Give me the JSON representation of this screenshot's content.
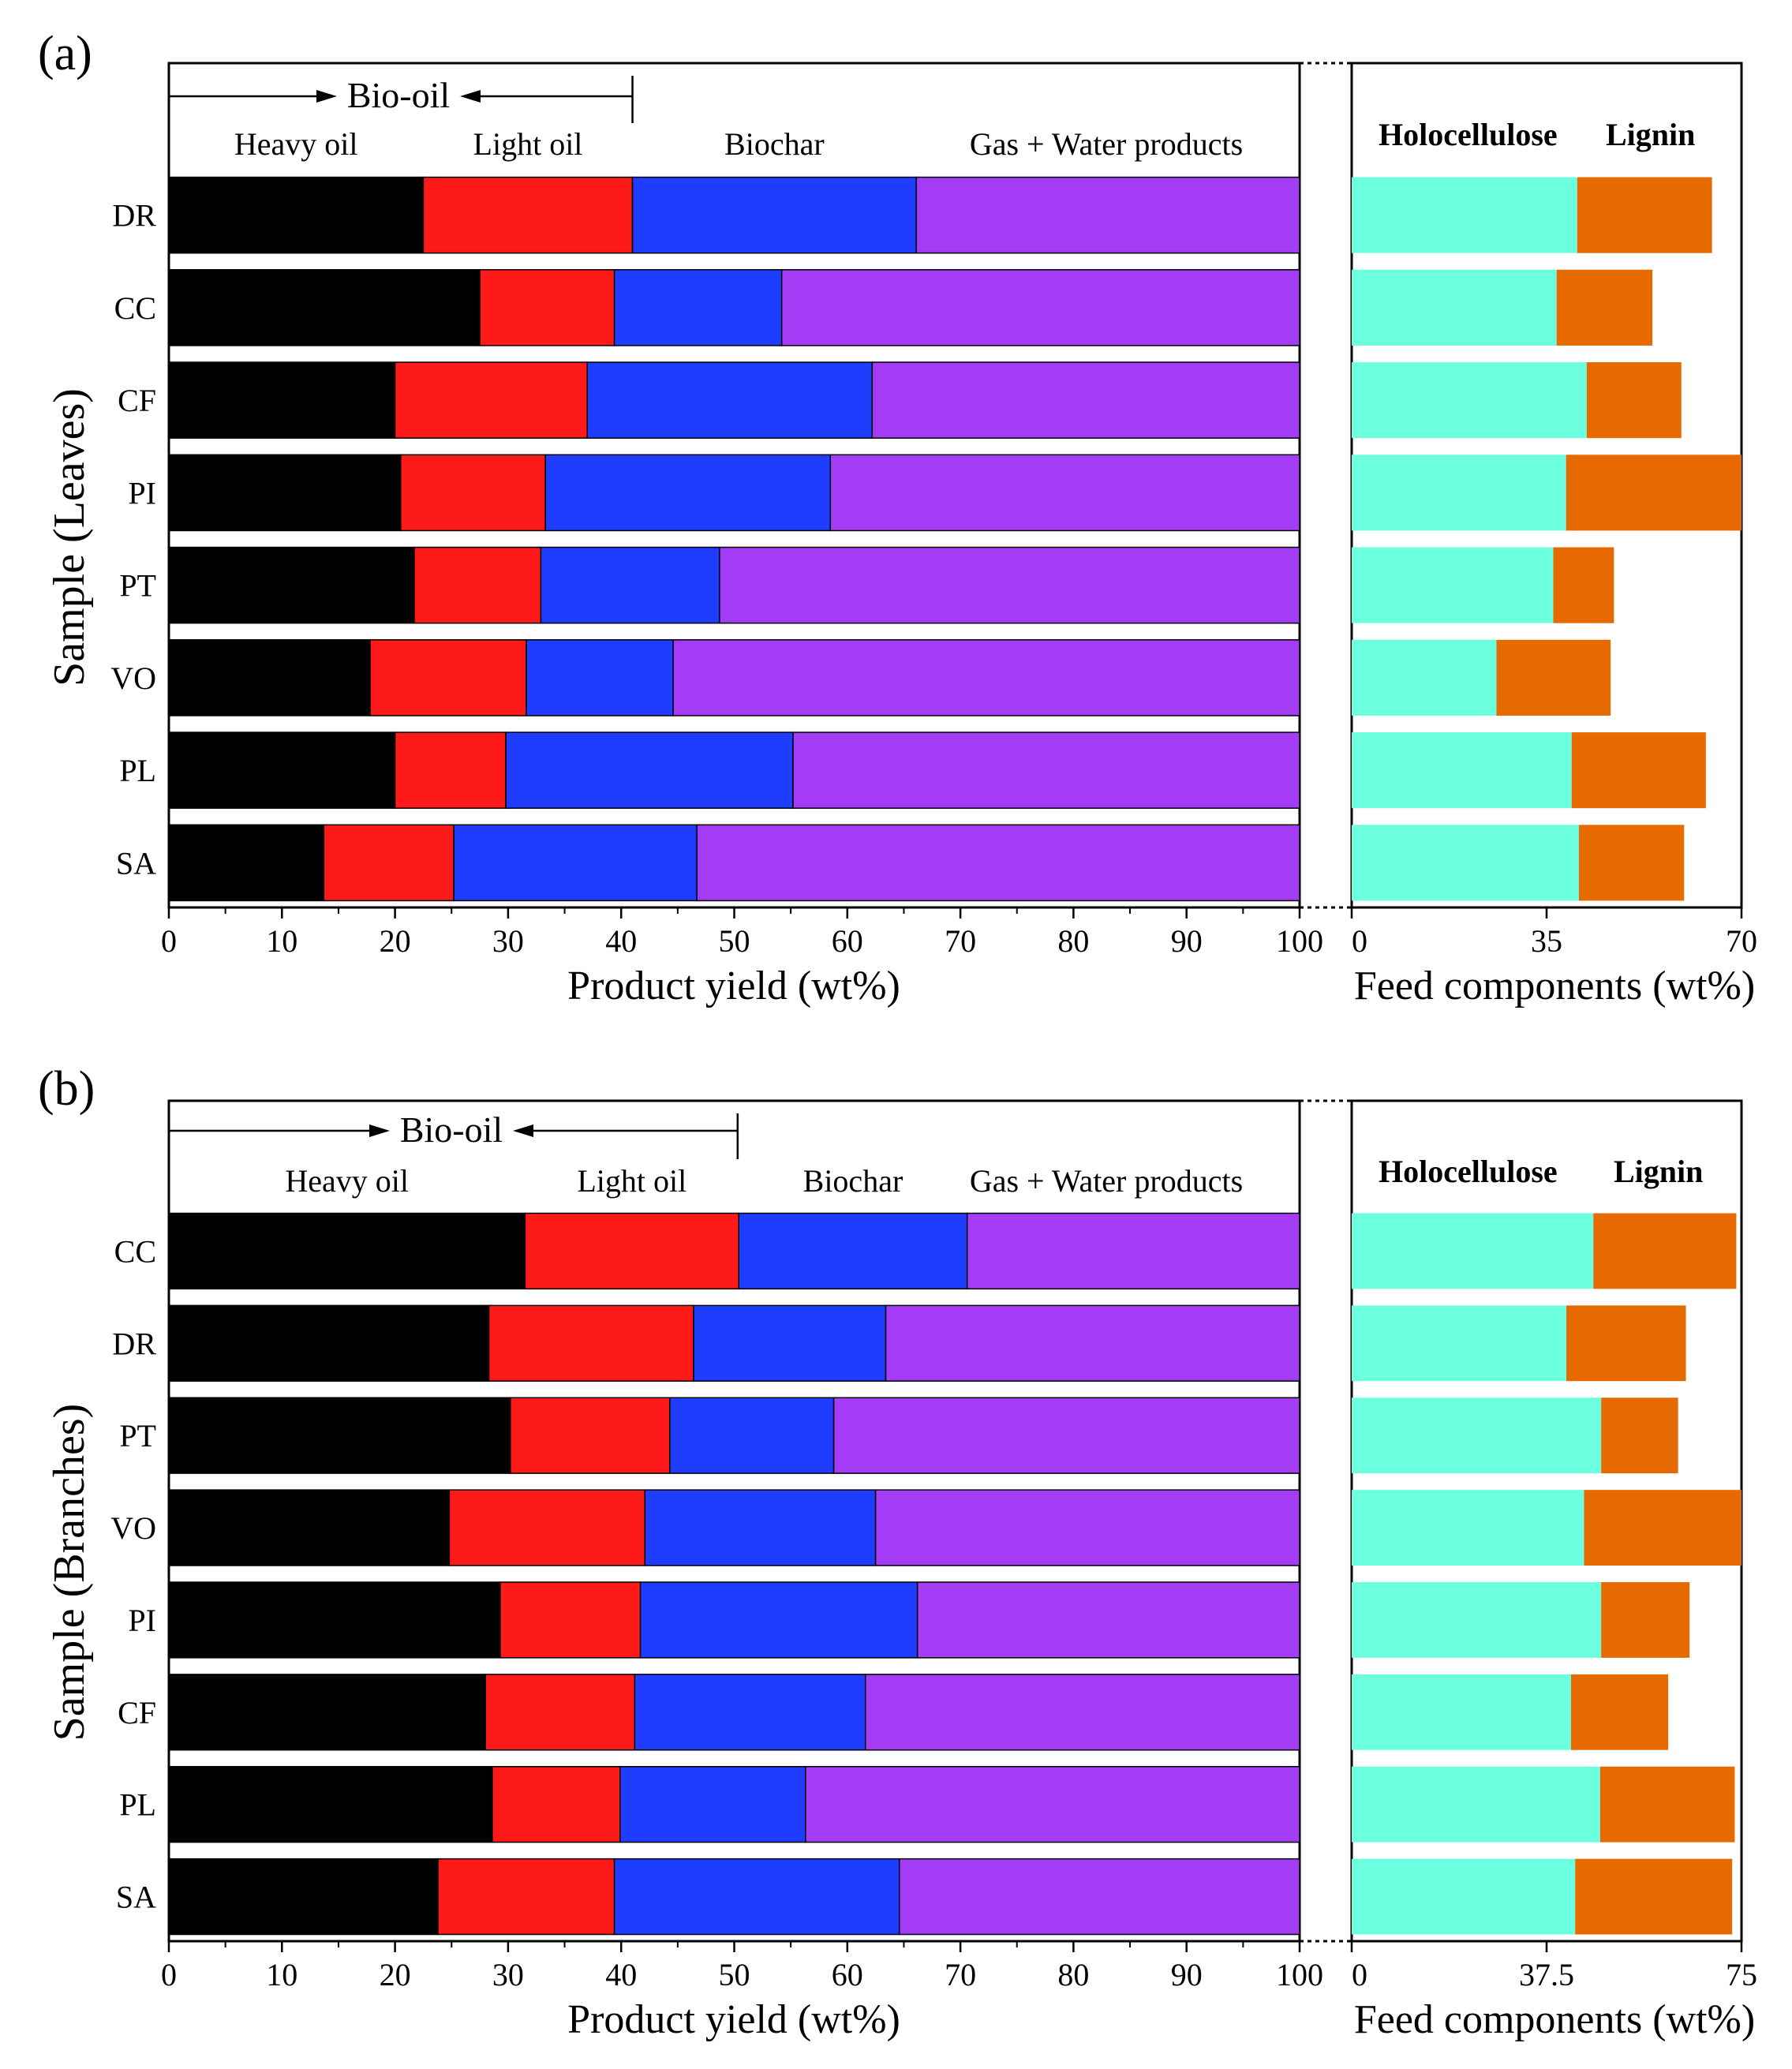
{
  "chart_data": [
    {
      "type": "bar",
      "orientation": "horizontal",
      "stacked": true,
      "panel_label": "(a)",
      "ylabel": "Sample (Leaves)",
      "xlabel": "Product yield (wt%)",
      "xlim": [
        0,
        100
      ],
      "xticks": [
        "0",
        "10",
        "20",
        "30",
        "40",
        "50",
        "60",
        "70",
        "80",
        "90",
        "100"
      ],
      "bio_oil_label": "Bio-oil",
      "categories": [
        "DR",
        "CC",
        "CF",
        "PI",
        "PT",
        "VO",
        "PL",
        "SA"
      ],
      "series": [
        {
          "name": "Heavy oil",
          "color": "#000000",
          "values": [
            22.5,
            27.5,
            20.0,
            20.5,
            21.7,
            17.8,
            20.0,
            13.7
          ]
        },
        {
          "name": "Light oil",
          "color": "#ff1a1a",
          "values": [
            18.5,
            11.9,
            17.0,
            12.8,
            11.2,
            13.8,
            9.8,
            11.5
          ]
        },
        {
          "name": "Biochar",
          "color": "#1f3dff",
          "values": [
            25.1,
            14.8,
            25.2,
            25.2,
            15.8,
            13.0,
            25.4,
            21.5
          ]
        },
        {
          "name": "Gas + Water products",
          "color": "#a53cf5",
          "values": [
            33.9,
            45.8,
            37.8,
            41.5,
            51.3,
            55.4,
            44.8,
            53.3
          ]
        }
      ],
      "feed": {
        "xlabel": "Feed components (wt%)",
        "xlim": [
          0,
          70
        ],
        "xticks": [
          "0",
          "35",
          "70"
        ],
        "series": [
          {
            "name": "Holocellulose",
            "color": "#6cffdf",
            "values": [
              40.5,
              36.8,
              42.2,
              38.5,
              36.2,
              26.0,
              39.5,
              40.8
            ]
          },
          {
            "name": "Lignin",
            "color": "#e66a00",
            "values": [
              24.2,
              17.2,
              17.0,
              31.6,
              10.9,
              20.5,
              24.1,
              18.9
            ]
          }
        ]
      }
    },
    {
      "type": "bar",
      "orientation": "horizontal",
      "stacked": true,
      "panel_label": "(b)",
      "ylabel": "Sample (Branches)",
      "xlabel": "Product yield (wt%)",
      "xlim": [
        0,
        100
      ],
      "xticks": [
        "0",
        "10",
        "20",
        "30",
        "40",
        "50",
        "60",
        "70",
        "80",
        "90",
        "100"
      ],
      "bio_oil_label": "Bio-oil",
      "categories": [
        "CC",
        "DR",
        "PT",
        "VO",
        "PI",
        "CF",
        "PL",
        "SA"
      ],
      "series": [
        {
          "name": "Heavy oil",
          "color": "#000000",
          "values": [
            31.5,
            28.3,
            30.2,
            24.8,
            29.3,
            28.0,
            28.6,
            23.8
          ]
        },
        {
          "name": "Light oil",
          "color": "#ff1a1a",
          "values": [
            18.9,
            18.1,
            14.1,
            17.3,
            12.4,
            13.2,
            11.3,
            15.6
          ]
        },
        {
          "name": "Biochar",
          "color": "#1f3dff",
          "values": [
            20.2,
            17.0,
            14.5,
            20.4,
            24.5,
            20.4,
            16.4,
            25.2
          ]
        },
        {
          "name": "Gas + Water products",
          "color": "#a53cf5",
          "values": [
            29.4,
            36.6,
            41.2,
            37.5,
            33.8,
            38.4,
            43.7,
            35.4
          ]
        }
      ],
      "feed": {
        "xlabel": "Feed components (wt%)",
        "xlim": [
          0,
          75
        ],
        "xticks": [
          "0",
          "37.5",
          "75"
        ],
        "series": [
          {
            "name": "Holocellulose",
            "color": "#6cffdf",
            "values": [
              46.5,
              41.3,
              48.0,
              44.7,
              48.0,
              42.2,
              47.8,
              43.0
            ]
          },
          {
            "name": "Lignin",
            "color": "#e66a00",
            "values": [
              27.5,
              23.0,
              14.8,
              30.3,
              17.0,
              18.7,
              25.9,
              30.2
            ]
          }
        ]
      }
    }
  ]
}
